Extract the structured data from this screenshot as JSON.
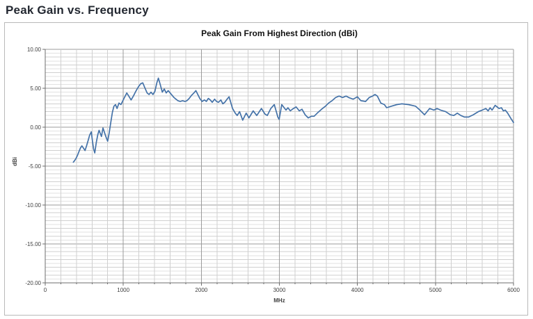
{
  "page": {
    "title": "Peak Gain vs. Frequency"
  },
  "chart": {
    "title": "Peak Gain From Highest Direction (dBi)",
    "x_axis_title": "MHz",
    "y_axis_title": "dBi",
    "line_color": "#4472a8",
    "grid_minor_color": "#e2e2e2",
    "grid_mid_color": "#cfcfcf",
    "grid_major_color": "#9b9b9b",
    "axis_color": "#6e6e6e"
  },
  "chart_data": {
    "type": "line",
    "title": "Peak Gain From Highest Direction (dBi)",
    "xlabel": "MHz",
    "ylabel": "dBi",
    "xlim": [
      0,
      6000
    ],
    "ylim": [
      -20,
      10
    ],
    "x_major_step": 1000,
    "x_minor_step": 200,
    "y_major_step": 5,
    "y_minor_step": 0.5,
    "grid": true,
    "legend_position": "none",
    "x_ticks": [
      {
        "v": 0,
        "label": "0"
      },
      {
        "v": 1000,
        "label": "1000"
      },
      {
        "v": 2000,
        "label": "2000"
      },
      {
        "v": 3000,
        "label": "3000"
      },
      {
        "v": 4000,
        "label": "4000"
      },
      {
        "v": 5000,
        "label": "5000"
      },
      {
        "v": 6000,
        "label": "6000"
      }
    ],
    "y_ticks": [
      {
        "v": 10,
        "label": "10.00"
      },
      {
        "v": 5,
        "label": "5.00"
      },
      {
        "v": 0,
        "label": "0.00"
      },
      {
        "v": -5,
        "label": "-5.00"
      },
      {
        "v": -10,
        "label": "-10.00"
      },
      {
        "v": -15,
        "label": "-15.00"
      },
      {
        "v": -20,
        "label": "-20.00"
      }
    ],
    "series": [
      {
        "name": "Peak Gain",
        "color": "#4472a8",
        "points": [
          [
            360,
            -4.5
          ],
          [
            375,
            -4.3
          ],
          [
            390,
            -4.1
          ],
          [
            410,
            -3.7
          ],
          [
            430,
            -3.2
          ],
          [
            450,
            -2.7
          ],
          [
            470,
            -2.4
          ],
          [
            490,
            -2.7
          ],
          [
            510,
            -3.0
          ],
          [
            530,
            -2.4
          ],
          [
            550,
            -1.7
          ],
          [
            570,
            -1.0
          ],
          [
            590,
            -0.6
          ],
          [
            605,
            -1.8
          ],
          [
            620,
            -2.8
          ],
          [
            635,
            -3.3
          ],
          [
            655,
            -1.9
          ],
          [
            675,
            -0.9
          ],
          [
            690,
            -0.4
          ],
          [
            705,
            -0.8
          ],
          [
            720,
            -1.2
          ],
          [
            740,
            -0.1
          ],
          [
            760,
            -0.7
          ],
          [
            780,
            -1.3
          ],
          [
            800,
            -1.8
          ],
          [
            820,
            -0.7
          ],
          [
            840,
            0.6
          ],
          [
            860,
            1.9
          ],
          [
            880,
            2.7
          ],
          [
            900,
            2.9
          ],
          [
            920,
            2.4
          ],
          [
            945,
            3.1
          ],
          [
            970,
            2.9
          ],
          [
            995,
            3.4
          ],
          [
            1020,
            3.9
          ],
          [
            1045,
            4.4
          ],
          [
            1070,
            4.0
          ],
          [
            1100,
            3.5
          ],
          [
            1130,
            4.0
          ],
          [
            1165,
            4.7
          ],
          [
            1195,
            5.2
          ],
          [
            1225,
            5.6
          ],
          [
            1250,
            5.7
          ],
          [
            1275,
            5.1
          ],
          [
            1305,
            4.4
          ],
          [
            1330,
            4.2
          ],
          [
            1355,
            4.5
          ],
          [
            1380,
            4.2
          ],
          [
            1405,
            4.6
          ],
          [
            1430,
            5.7
          ],
          [
            1450,
            6.3
          ],
          [
            1470,
            5.6
          ],
          [
            1500,
            4.5
          ],
          [
            1525,
            4.9
          ],
          [
            1550,
            4.4
          ],
          [
            1575,
            4.7
          ],
          [
            1600,
            4.4
          ],
          [
            1625,
            4.1
          ],
          [
            1650,
            3.8
          ],
          [
            1675,
            3.6
          ],
          [
            1700,
            3.4
          ],
          [
            1730,
            3.3
          ],
          [
            1760,
            3.4
          ],
          [
            1790,
            3.3
          ],
          [
            1815,
            3.4
          ],
          [
            1845,
            3.7
          ],
          [
            1875,
            4.1
          ],
          [
            1905,
            4.4
          ],
          [
            1930,
            4.7
          ],
          [
            1955,
            4.2
          ],
          [
            1980,
            3.7
          ],
          [
            2010,
            3.3
          ],
          [
            2040,
            3.5
          ],
          [
            2065,
            3.3
          ],
          [
            2090,
            3.7
          ],
          [
            2115,
            3.5
          ],
          [
            2140,
            3.2
          ],
          [
            2170,
            3.6
          ],
          [
            2195,
            3.3
          ],
          [
            2220,
            3.2
          ],
          [
            2250,
            3.5
          ],
          [
            2275,
            3.0
          ],
          [
            2300,
            3.2
          ],
          [
            2330,
            3.6
          ],
          [
            2355,
            3.9
          ],
          [
            2400,
            2.4
          ],
          [
            2435,
            1.8
          ],
          [
            2460,
            1.5
          ],
          [
            2490,
            2.0
          ],
          [
            2530,
            0.9
          ],
          [
            2575,
            1.8
          ],
          [
            2610,
            1.2
          ],
          [
            2665,
            2.1
          ],
          [
            2710,
            1.5
          ],
          [
            2770,
            2.4
          ],
          [
            2815,
            1.7
          ],
          [
            2845,
            1.5
          ],
          [
            2890,
            2.4
          ],
          [
            2935,
            2.9
          ],
          [
            2980,
            1.3
          ],
          [
            2997,
            1.0
          ],
          [
            3030,
            2.9
          ],
          [
            3085,
            2.2
          ],
          [
            3110,
            2.5
          ],
          [
            3140,
            2.1
          ],
          [
            3180,
            2.4
          ],
          [
            3215,
            2.6
          ],
          [
            3255,
            2.1
          ],
          [
            3290,
            2.3
          ],
          [
            3330,
            1.6
          ],
          [
            3370,
            1.2
          ],
          [
            3410,
            1.4
          ],
          [
            3445,
            1.4
          ],
          [
            3485,
            1.8
          ],
          [
            3540,
            2.3
          ],
          [
            3590,
            2.7
          ],
          [
            3630,
            3.1
          ],
          [
            3675,
            3.4
          ],
          [
            3720,
            3.8
          ],
          [
            3765,
            4.0
          ],
          [
            3810,
            3.8
          ],
          [
            3855,
            4.0
          ],
          [
            3890,
            3.8
          ],
          [
            3945,
            3.6
          ],
          [
            4000,
            3.9
          ],
          [
            4045,
            3.4
          ],
          [
            4105,
            3.3
          ],
          [
            4150,
            3.8
          ],
          [
            4195,
            4.0
          ],
          [
            4225,
            4.2
          ],
          [
            4255,
            4.0
          ],
          [
            4300,
            3.1
          ],
          [
            4345,
            2.9
          ],
          [
            4375,
            2.5
          ],
          [
            4435,
            2.7
          ],
          [
            4505,
            2.9
          ],
          [
            4570,
            3.0
          ],
          [
            4655,
            2.9
          ],
          [
            4745,
            2.7
          ],
          [
            4800,
            2.2
          ],
          [
            4860,
            1.6
          ],
          [
            4925,
            2.4
          ],
          [
            4980,
            2.2
          ],
          [
            5020,
            2.4
          ],
          [
            5065,
            2.2
          ],
          [
            5130,
            2.0
          ],
          [
            5190,
            1.6
          ],
          [
            5235,
            1.5
          ],
          [
            5280,
            1.8
          ],
          [
            5325,
            1.5
          ],
          [
            5370,
            1.3
          ],
          [
            5425,
            1.3
          ],
          [
            5485,
            1.6
          ],
          [
            5550,
            2.0
          ],
          [
            5600,
            2.2
          ],
          [
            5645,
            2.4
          ],
          [
            5675,
            2.1
          ],
          [
            5700,
            2.5
          ],
          [
            5725,
            2.2
          ],
          [
            5765,
            2.8
          ],
          [
            5815,
            2.4
          ],
          [
            5845,
            2.5
          ],
          [
            5870,
            2.1
          ],
          [
            5895,
            2.2
          ],
          [
            5925,
            1.8
          ],
          [
            5955,
            1.3
          ],
          [
            5980,
            0.9
          ],
          [
            6000,
            0.6
          ]
        ]
      }
    ]
  }
}
